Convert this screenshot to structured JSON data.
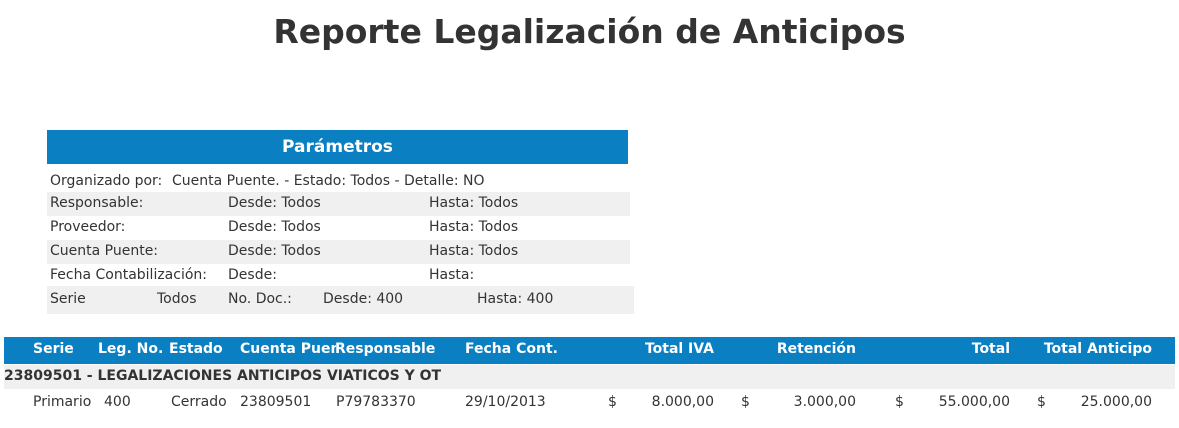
{
  "title": "Reporte Legalización de Anticipos",
  "params": {
    "header": "Parámetros",
    "organizado_label": "Organizado por:",
    "organizado_value": "Cuenta Puente. - Estado: Todos - Detalle: NO",
    "rows": [
      {
        "label": "Responsable:",
        "desde": "Desde: Todos",
        "hasta": "Hasta: Todos"
      },
      {
        "label": "Proveedor:",
        "desde": "Desde: Todos",
        "hasta": "Hasta: Todos"
      },
      {
        "label": "Cuenta Puente:",
        "desde": "Desde: Todos",
        "hasta": "Hasta: Todos"
      },
      {
        "label": "Fecha Contabilización:",
        "desde": "Desde:",
        "hasta": "Hasta:"
      }
    ],
    "serie_label": "Serie",
    "serie_value": "Todos",
    "nodoc_label": "No. Doc.:",
    "nodoc_desde": "Desde: 400",
    "nodoc_hasta": "Hasta: 400"
  },
  "table": {
    "columns": [
      "Serie",
      "Leg. No.",
      "Estado",
      "Cuenta Puent",
      "Responsable",
      "Fecha Cont.",
      "Total IVA",
      "Retención",
      "Total",
      "Total Anticipo"
    ],
    "group": "23809501 - LEGALIZACIONES ANTICIPOS VIATICOS Y OT",
    "rows": [
      {
        "serie": "Primario",
        "leg_no": "400",
        "estado": "Cerrado",
        "cuenta": "23809501",
        "responsable": "P79783370",
        "fecha": "29/10/2013",
        "currency": "$",
        "total_iva": "8.000,00",
        "retencion": "3.000,00",
        "total": "55.000,00",
        "total_anticipo": "25.000,00"
      }
    ]
  }
}
